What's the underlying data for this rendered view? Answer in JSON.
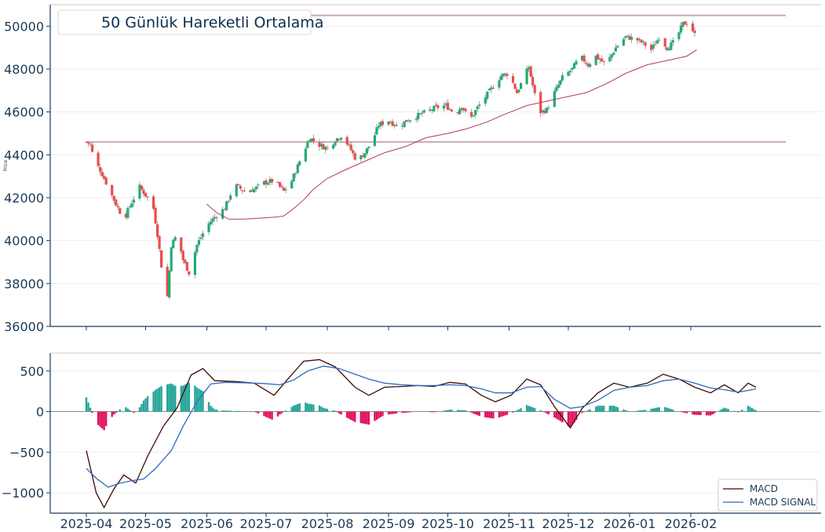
{
  "chart_data": [
    {
      "type": "candlestick",
      "title": "50 Günlük Hareketli Ortalama",
      "ylabel": "Price",
      "ylim": [
        36000,
        51000
      ],
      "yticks": [
        "36000",
        "38000",
        "40000",
        "42000",
        "44000",
        "46000",
        "48000",
        "50000"
      ],
      "horizontal_levels": [
        44600,
        50500
      ],
      "colors": {
        "up": "#22ab74",
        "down": "#ee4a4a",
        "ma": "#b23a5e",
        "level": "#c8a9b4"
      },
      "keypoints": [
        [
          "2025-04-01",
          44600
        ],
        [
          "2025-04-03",
          44500
        ],
        [
          "2025-04-05",
          43700
        ],
        [
          "2025-04-08",
          43300
        ],
        [
          "2025-04-12",
          42500
        ],
        [
          "2025-04-16",
          41700
        ],
        [
          "2025-04-20",
          41000
        ],
        [
          "2025-04-24",
          41800
        ],
        [
          "2025-04-28",
          42500
        ],
        [
          "2025-05-02",
          42000
        ],
        [
          "2025-05-05",
          41500
        ],
        [
          "2025-05-07",
          40300
        ],
        [
          "2025-05-10",
          38100
        ],
        [
          "2025-05-12",
          37400
        ],
        [
          "2025-05-14",
          39800
        ],
        [
          "2025-05-17",
          40300
        ],
        [
          "2025-05-20",
          39100
        ],
        [
          "2025-05-23",
          38500
        ],
        [
          "2025-05-27",
          39800
        ],
        [
          "2025-06-01",
          40700
        ],
        [
          "2025-06-05",
          41100
        ],
        [
          "2025-06-10",
          41500
        ],
        [
          "2025-06-15",
          42600
        ],
        [
          "2025-06-20",
          42300
        ],
        [
          "2025-06-25",
          42400
        ],
        [
          "2025-06-30",
          42700
        ],
        [
          "2025-07-05",
          42800
        ],
        [
          "2025-07-10",
          42300
        ],
        [
          "2025-07-14",
          42800
        ],
        [
          "2025-07-18",
          43700
        ],
        [
          "2025-07-23",
          44800
        ],
        [
          "2025-07-27",
          44500
        ],
        [
          "2025-08-01",
          44300
        ],
        [
          "2025-08-05",
          44700
        ],
        [
          "2025-08-08",
          44900
        ],
        [
          "2025-08-12",
          44400
        ],
        [
          "2025-08-16",
          43700
        ],
        [
          "2025-08-20",
          44100
        ],
        [
          "2025-08-24",
          44700
        ],
        [
          "2025-08-27",
          45400
        ],
        [
          "2025-09-01",
          45600
        ],
        [
          "2025-09-06",
          45300
        ],
        [
          "2025-09-10",
          45600
        ],
        [
          "2025-09-15",
          45800
        ],
        [
          "2025-09-20",
          46000
        ],
        [
          "2025-09-25",
          46200
        ],
        [
          "2025-09-30",
          46300
        ],
        [
          "2025-10-05",
          45900
        ],
        [
          "2025-10-08",
          46300
        ],
        [
          "2025-10-12",
          45600
        ],
        [
          "2025-10-16",
          46200
        ],
        [
          "2025-10-20",
          46700
        ],
        [
          "2025-10-24",
          47200
        ],
        [
          "2025-10-28",
          47700
        ],
        [
          "2025-11-01",
          47800
        ],
        [
          "2025-11-05",
          46900
        ],
        [
          "2025-11-08",
          47500
        ],
        [
          "2025-11-11",
          48100
        ],
        [
          "2025-11-14",
          46800
        ],
        [
          "2025-11-17",
          46000
        ],
        [
          "2025-11-20",
          46100
        ],
        [
          "2025-11-24",
          46900
        ],
        [
          "2025-11-28",
          47600
        ],
        [
          "2025-12-03",
          48000
        ],
        [
          "2025-12-07",
          48600
        ],
        [
          "2025-12-11",
          48200
        ],
        [
          "2025-12-15",
          48600
        ],
        [
          "2025-12-20",
          48200
        ],
        [
          "2025-12-25",
          49000
        ],
        [
          "2025-12-30",
          49500
        ],
        [
          "2026-01-04",
          49400
        ],
        [
          "2026-01-08",
          49200
        ],
        [
          "2026-01-12",
          48900
        ],
        [
          "2026-01-16",
          49500
        ],
        [
          "2026-01-20",
          49000
        ],
        [
          "2026-01-24",
          49300
        ],
        [
          "2026-01-28",
          50100
        ],
        [
          "2026-01-31",
          50200
        ],
        [
          "2026-02-03",
          49600
        ]
      ],
      "moving_average": [
        [
          "2025-06-01",
          41700
        ],
        [
          "2025-06-06",
          41300
        ],
        [
          "2025-06-12",
          41000
        ],
        [
          "2025-06-20",
          41000
        ],
        [
          "2025-06-28",
          41050
        ],
        [
          "2025-07-06",
          41100
        ],
        [
          "2025-07-10",
          41150
        ],
        [
          "2025-07-15",
          41500
        ],
        [
          "2025-07-20",
          41900
        ],
        [
          "2025-07-25",
          42400
        ],
        [
          "2025-08-01",
          42900
        ],
        [
          "2025-08-10",
          43300
        ],
        [
          "2025-08-20",
          43700
        ],
        [
          "2025-08-30",
          44100
        ],
        [
          "2025-09-10",
          44400
        ],
        [
          "2025-09-20",
          44800
        ],
        [
          "2025-10-01",
          45000
        ],
        [
          "2025-10-10",
          45200
        ],
        [
          "2025-10-20",
          45500
        ],
        [
          "2025-10-30",
          45900
        ],
        [
          "2025-11-10",
          46300
        ],
        [
          "2025-11-20",
          46500
        ],
        [
          "2025-11-30",
          46700
        ],
        [
          "2025-12-10",
          46900
        ],
        [
          "2025-12-20",
          47300
        ],
        [
          "2025-12-30",
          47800
        ],
        [
          "2026-01-10",
          48200
        ],
        [
          "2026-01-20",
          48400
        ],
        [
          "2026-01-30",
          48600
        ],
        [
          "2026-02-04",
          48900
        ]
      ]
    },
    {
      "type": "line",
      "ylim": [
        -1250,
        720
      ],
      "yticks": [
        "−1000",
        "−500",
        "0",
        "500"
      ],
      "xlabels": [
        "2025-04",
        "2025-05",
        "2025-06",
        "2025-07",
        "2025-08",
        "2025-09",
        "2025-10",
        "2025-11",
        "2025-12",
        "2026-01",
        "2026-02"
      ],
      "legend_position": "bottom-right",
      "series": [
        {
          "name": "MACD",
          "color": "#3d0a06",
          "points": [
            [
              "2025-04-01",
              -480
            ],
            [
              "2025-04-06",
              -1000
            ],
            [
              "2025-04-10",
              -1180
            ],
            [
              "2025-04-15",
              -950
            ],
            [
              "2025-04-20",
              -780
            ],
            [
              "2025-04-26",
              -880
            ],
            [
              "2025-05-02",
              -550
            ],
            [
              "2025-05-10",
              -180
            ],
            [
              "2025-05-17",
              50
            ],
            [
              "2025-05-24",
              450
            ],
            [
              "2025-05-30",
              530
            ],
            [
              "2025-06-05",
              380
            ],
            [
              "2025-06-15",
              370
            ],
            [
              "2025-06-25",
              350
            ],
            [
              "2025-07-05",
              200
            ],
            [
              "2025-07-12",
              400
            ],
            [
              "2025-07-20",
              620
            ],
            [
              "2025-07-28",
              640
            ],
            [
              "2025-08-05",
              550
            ],
            [
              "2025-08-15",
              300
            ],
            [
              "2025-08-22",
              200
            ],
            [
              "2025-08-30",
              300
            ],
            [
              "2025-09-08",
              310
            ],
            [
              "2025-09-16",
              320
            ],
            [
              "2025-09-24",
              310
            ],
            [
              "2025-10-02",
              360
            ],
            [
              "2025-10-10",
              340
            ],
            [
              "2025-10-18",
              200
            ],
            [
              "2025-10-25",
              120
            ],
            [
              "2025-11-02",
              200
            ],
            [
              "2025-11-10",
              400
            ],
            [
              "2025-11-17",
              330
            ],
            [
              "2025-11-24",
              60
            ],
            [
              "2025-12-02",
              -200
            ],
            [
              "2025-12-08",
              40
            ],
            [
              "2025-12-16",
              230
            ],
            [
              "2025-12-24",
              350
            ],
            [
              "2026-01-01",
              300
            ],
            [
              "2026-01-10",
              350
            ],
            [
              "2026-01-18",
              460
            ],
            [
              "2026-01-26",
              400
            ],
            [
              "2026-02-03",
              300
            ],
            [
              "2026-02-11",
              230
            ],
            [
              "2026-02-18",
              330
            ],
            [
              "2026-02-25",
              230
            ],
            [
              "2026-03-02",
              350
            ],
            [
              "2026-03-06",
              300
            ]
          ]
        },
        {
          "name": "MACD SIGNAL",
          "color": "#2d6bbd",
          "points": [
            [
              "2025-04-01",
              -700
            ],
            [
              "2025-04-06",
              -820
            ],
            [
              "2025-04-12",
              -930
            ],
            [
              "2025-04-18",
              -880
            ],
            [
              "2025-04-24",
              -850
            ],
            [
              "2025-04-30",
              -830
            ],
            [
              "2025-05-06",
              -700
            ],
            [
              "2025-05-14",
              -480
            ],
            [
              "2025-05-20",
              -180
            ],
            [
              "2025-05-27",
              120
            ],
            [
              "2025-06-03",
              340
            ],
            [
              "2025-06-10",
              360
            ],
            [
              "2025-06-20",
              355
            ],
            [
              "2025-06-30",
              345
            ],
            [
              "2025-07-08",
              330
            ],
            [
              "2025-07-15",
              390
            ],
            [
              "2025-07-22",
              500
            ],
            [
              "2025-07-30",
              560
            ],
            [
              "2025-08-07",
              530
            ],
            [
              "2025-08-15",
              460
            ],
            [
              "2025-08-22",
              400
            ],
            [
              "2025-08-30",
              350
            ],
            [
              "2025-09-08",
              330
            ],
            [
              "2025-09-16",
              320
            ],
            [
              "2025-09-24",
              320
            ],
            [
              "2025-10-02",
              330
            ],
            [
              "2025-10-10",
              320
            ],
            [
              "2025-10-18",
              280
            ],
            [
              "2025-10-25",
              230
            ],
            [
              "2025-11-02",
              230
            ],
            [
              "2025-11-10",
              300
            ],
            [
              "2025-11-17",
              310
            ],
            [
              "2025-11-24",
              150
            ],
            [
              "2025-12-02",
              40
            ],
            [
              "2025-12-08",
              60
            ],
            [
              "2025-12-16",
              140
            ],
            [
              "2025-12-24",
              260
            ],
            [
              "2026-01-01",
              300
            ],
            [
              "2026-01-10",
              320
            ],
            [
              "2026-01-18",
              380
            ],
            [
              "2026-01-26",
              400
            ],
            [
              "2026-02-03",
              350
            ],
            [
              "2026-02-11",
              290
            ],
            [
              "2026-02-18",
              270
            ],
            [
              "2026-02-25",
              240
            ],
            [
              "2026-03-02",
              260
            ],
            [
              "2026-03-06",
              280
            ]
          ]
        }
      ],
      "histogram_colors": {
        "positive": "#26a69a",
        "negative": "#e0115f"
      }
    }
  ]
}
